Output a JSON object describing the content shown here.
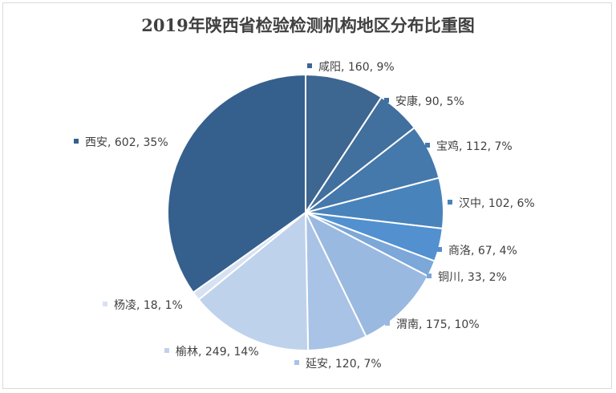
{
  "chart_data": {
    "type": "pie",
    "title": "2019年陕西省检验检测机构地区分布比重图",
    "series": [
      {
        "name": "咸阳",
        "value": 160,
        "percent": "9%",
        "color": "#3d6691"
      },
      {
        "name": "安康",
        "value": 90,
        "percent": "5%",
        "color": "#416f9e"
      },
      {
        "name": "宝鸡",
        "value": 112,
        "percent": "7%",
        "color": "#4578ab"
      },
      {
        "name": "汉中",
        "value": 102,
        "percent": "6%",
        "color": "#4983bc"
      },
      {
        "name": "商洛",
        "value": 67,
        "percent": "4%",
        "color": "#5290cf"
      },
      {
        "name": "铜川",
        "value": 33,
        "percent": "2%",
        "color": "#7ba7d9"
      },
      {
        "name": "渭南",
        "value": 175,
        "percent": "10%",
        "color": "#9ab9e0"
      },
      {
        "name": "延安",
        "value": 120,
        "percent": "7%",
        "color": "#a9c3e6"
      },
      {
        "name": "榆林",
        "value": 249,
        "percent": "14%",
        "color": "#bfd2ec"
      },
      {
        "name": "杨凌",
        "value": 18,
        "percent": "1%",
        "color": "#d6e2f1"
      },
      {
        "name": "西安",
        "value": 602,
        "percent": "35%",
        "color": "#35608d"
      }
    ],
    "legend": "labels next to slices"
  }
}
